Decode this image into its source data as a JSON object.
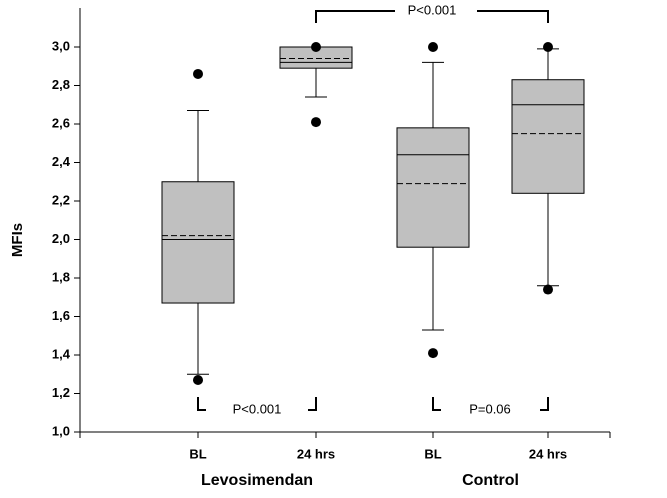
{
  "chart_data": {
    "type": "box",
    "y_label": "MFIs",
    "categories": [
      "BL",
      "24 hrs",
      "BL",
      "24 hrs"
    ],
    "groups": [
      "Levosimendan",
      "Control"
    ],
    "ylim": [
      1,
      3.1
    ],
    "yticks": [
      {
        "value": 1,
        "label": "1,0"
      },
      {
        "value": 1.2,
        "label": "1,2"
      },
      {
        "value": 1.4,
        "label": "1,4"
      },
      {
        "value": 1.6,
        "label": "1,6"
      },
      {
        "value": 1.8,
        "label": "1,8"
      },
      {
        "value": 2,
        "label": "2,0"
      },
      {
        "value": 2.2,
        "label": "2,2"
      },
      {
        "value": 2.4,
        "label": "2,4"
      },
      {
        "value": 2.6,
        "label": "2,6"
      },
      {
        "value": 2.8,
        "label": "2,8"
      },
      {
        "value": 3,
        "label": "3,0"
      }
    ],
    "color": "#c0c0c0",
    "series": [
      {
        "whisker_low": 1.3,
        "q1": 1.67,
        "median": 2.0,
        "mean": 2.02,
        "q3": 2.3,
        "whisker_high": 2.67,
        "outliers": [
          2.86,
          1.27
        ]
      },
      {
        "whisker_low": 2.74,
        "q1": 2.89,
        "median": 2.92,
        "mean": 2.94,
        "q3": 3.0,
        "whisker_high": 3.0,
        "outliers": [
          3.0,
          2.61
        ]
      },
      {
        "whisker_low": 1.53,
        "q1": 1.96,
        "median": 2.44,
        "mean": 2.29,
        "q3": 2.58,
        "whisker_high": 2.92,
        "outliers": [
          3.0,
          1.41
        ]
      },
      {
        "whisker_low": 1.76,
        "q1": 2.24,
        "median": 2.7,
        "mean": 2.55,
        "q3": 2.83,
        "whisker_high": 2.99,
        "outliers": [
          3.0,
          1.74
        ]
      }
    ],
    "annotations": [
      "P<0.001",
      "P<0.001",
      "P=0.06"
    ]
  }
}
